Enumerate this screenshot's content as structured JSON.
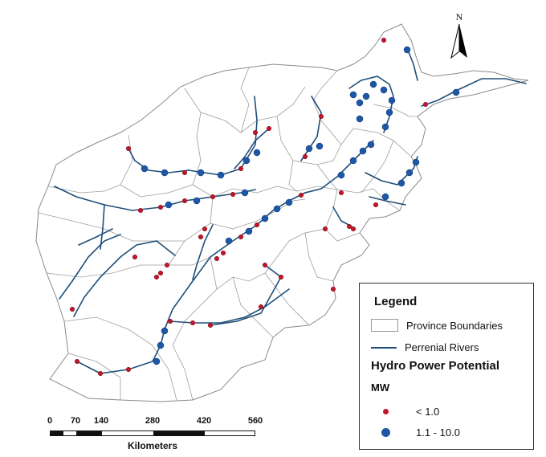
{
  "map": {
    "legend": {
      "title": "Legend",
      "province_label": "Province Boundaries",
      "rivers_label": "Perrenial Rivers",
      "section_title": "Hydro Power Potential",
      "unit": "MW",
      "class_low": "< 1.0",
      "class_high": "1.1 - 10.0",
      "colors": {
        "low": "#c0182a",
        "high": "#1d57a7",
        "river": "#1f4e79",
        "boundary": "#9a9a9a"
      }
    },
    "scale_bar": {
      "ticks": [
        "0",
        "70",
        "140",
        "280",
        "420",
        "560"
      ],
      "unit": "Kilometers"
    },
    "north_arrow": {
      "label": "N",
      "icon": "north-arrow-icon"
    }
  }
}
